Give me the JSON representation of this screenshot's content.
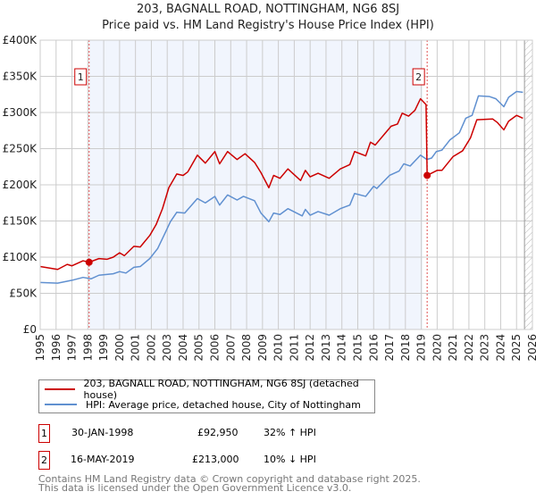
{
  "chart_data": {
    "type": "line",
    "title": "203, BAGNALL ROAD, NOTTINGHAM, NG6 8SJ",
    "subtitle": "Price paid vs. HM Land Registry's House Price Index (HPI)",
    "xlim": [
      1995,
      2026
    ],
    "ylim": [
      0,
      400000
    ],
    "x_ticks": [
      "1995",
      "1996",
      "1997",
      "1998",
      "1999",
      "2000",
      "2001",
      "2002",
      "2003",
      "2004",
      "2005",
      "2006",
      "2007",
      "2008",
      "2009",
      "2010",
      "2011",
      "2012",
      "2013",
      "2014",
      "2015",
      "2016",
      "2017",
      "2018",
      "2019",
      "2020",
      "2021",
      "2022",
      "2023",
      "2024",
      "2025",
      "2026"
    ],
    "y_ticks": [
      {
        "v": 0,
        "label": "£0"
      },
      {
        "v": 50000,
        "label": "£50K"
      },
      {
        "v": 100000,
        "label": "£100K"
      },
      {
        "v": 150000,
        "label": "£150K"
      },
      {
        "v": 200000,
        "label": "£200K"
      },
      {
        "v": 250000,
        "label": "£250K"
      },
      {
        "v": 300000,
        "label": "£300K"
      },
      {
        "v": 350000,
        "label": "£350K"
      },
      {
        "v": 400000,
        "label": "£400K"
      }
    ],
    "grid": true,
    "shaded_range": [
      1998.08,
      2019.1
    ],
    "hatched_from": 2025.5,
    "series": [
      {
        "name": "203, BAGNALL ROAD, NOTTINGHAM, NG6 8SJ (detached house)",
        "color": "#cc0000",
        "x": [
          1995.0,
          1996.1,
          1996.7,
          1997.0,
          1997.7,
          1998.08,
          1998.7,
          1999.2,
          1999.6,
          2000.0,
          2000.3,
          2000.9,
          2001.3,
          2001.9,
          2002.3,
          2002.7,
          2003.1,
          2003.6,
          2004.0,
          2004.3,
          2004.9,
          2005.4,
          2006.0,
          2006.3,
          2006.8,
          2007.4,
          2007.9,
          2008.5,
          2008.9,
          2009.4,
          2009.7,
          2010.1,
          2010.6,
          2011.4,
          2011.7,
          2012.0,
          2012.5,
          2013.2,
          2013.9,
          2014.5,
          2014.8,
          2015.5,
          2015.8,
          2016.1,
          2016.6,
          2017.1,
          2017.5,
          2017.8,
          2018.2,
          2018.6,
          2018.95,
          2019.3,
          2019.37,
          2020.0,
          2020.3,
          2021.0,
          2021.6,
          2022.1,
          2022.5,
          2023.5,
          2023.8,
          2024.2,
          2024.5,
          2025.0,
          2025.4
        ],
        "y": [
          87000,
          83000,
          90000,
          88000,
          95000,
          92950,
          98000,
          97000,
          100000,
          106000,
          102000,
          115000,
          114000,
          130000,
          145000,
          167000,
          196000,
          215000,
          213000,
          218000,
          241000,
          230000,
          246000,
          229000,
          246000,
          235000,
          243000,
          231000,
          217000,
          196000,
          213000,
          209000,
          222000,
          206000,
          220000,
          211000,
          216000,
          209000,
          222000,
          228000,
          246000,
          240000,
          259000,
          255000,
          268000,
          281000,
          284000,
          299000,
          295000,
          303000,
          319000,
          311000,
          213000,
          220000,
          220000,
          239000,
          247000,
          265000,
          290000,
          291000,
          286000,
          276000,
          288000,
          296000,
          292000
        ]
      },
      {
        "name": "HPI: Average price, detached house, City of Nottingham",
        "color": "#6090d0",
        "x": [
          1995.0,
          1996.1,
          1997.0,
          1997.7,
          1998.2,
          1998.7,
          1999.6,
          2000.0,
          2000.4,
          2000.9,
          2001.3,
          2001.9,
          2002.4,
          2002.9,
          2003.2,
          2003.6,
          2004.1,
          2004.9,
          2005.4,
          2006.0,
          2006.3,
          2006.8,
          2007.4,
          2007.8,
          2008.5,
          2008.9,
          2009.4,
          2009.7,
          2010.1,
          2010.6,
          2011.5,
          2011.7,
          2012.0,
          2012.5,
          2013.2,
          2013.9,
          2014.5,
          2014.8,
          2015.5,
          2016.0,
          2016.2,
          2017.0,
          2017.6,
          2017.9,
          2018.3,
          2018.95,
          2019.35,
          2019.65,
          2019.95,
          2020.3,
          2020.8,
          2021.4,
          2021.8,
          2022.2,
          2022.6,
          2023.3,
          2023.7,
          2024.2,
          2024.5,
          2025.0,
          2025.4
        ],
        "y": [
          65000,
          64000,
          68000,
          72000,
          70000,
          75000,
          77000,
          80000,
          78000,
          86000,
          87000,
          98000,
          112000,
          135000,
          149000,
          162000,
          161000,
          181000,
          175000,
          184000,
          172000,
          186000,
          179000,
          184000,
          178000,
          161000,
          149000,
          161000,
          159000,
          167000,
          157000,
          166000,
          158000,
          163000,
          158000,
          167000,
          172000,
          188000,
          184000,
          198000,
          195000,
          213000,
          219000,
          229000,
          226000,
          241000,
          235000,
          237000,
          246000,
          248000,
          262000,
          272000,
          292000,
          296000,
          323000,
          322000,
          319000,
          308000,
          321000,
          329000,
          328000
        ]
      }
    ],
    "annotations": [
      {
        "label": "1",
        "x": 1998.08,
        "y": 92950
      },
      {
        "label": "2",
        "x": 2019.37,
        "y": 213000
      }
    ]
  },
  "legend": {
    "red": "203, BAGNALL ROAD, NOTTINGHAM, NG6 8SJ (detached house)",
    "blue": "HPI: Average price, detached house, City of Nottingham"
  },
  "transactions": [
    {
      "num": "1",
      "date": "30-JAN-1998",
      "price": "£92,950",
      "hpi": "32% ↑ HPI"
    },
    {
      "num": "2",
      "date": "16-MAY-2019",
      "price": "£213,000",
      "hpi": "10% ↓ HPI"
    }
  ],
  "footer": {
    "line1": "Contains HM Land Registry data © Crown copyright and database right 2025.",
    "line2": "This data is licensed under the Open Government Licence v3.0."
  }
}
